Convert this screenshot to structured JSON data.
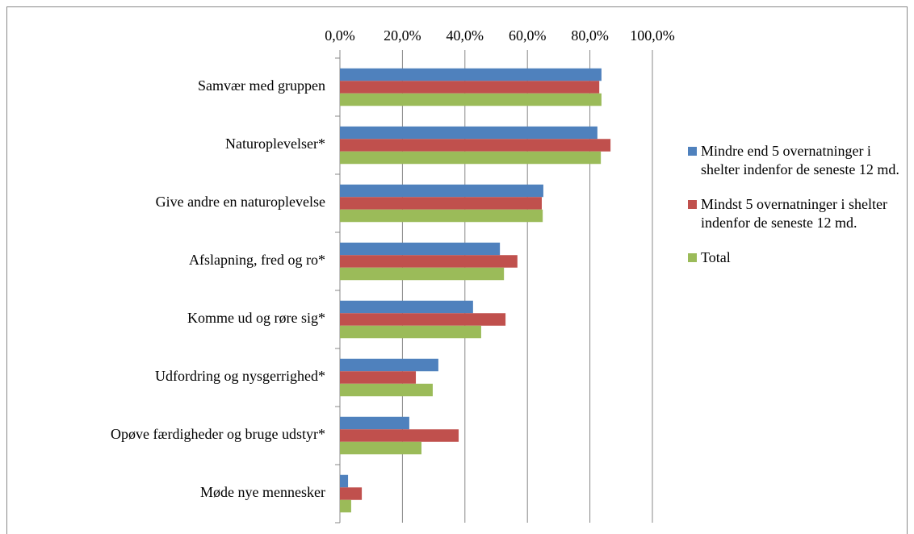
{
  "chart_data": {
    "type": "barh",
    "categories": [
      "Samvær med gruppen",
      "Naturoplevelser*",
      "Give andre en naturoplevelse",
      "Afslapning, fred og ro*",
      "Komme ud og røre sig*",
      "Udfordring og nysgerrighed*",
      "Opøve færdigheder og bruge udstyr*",
      "Møde nye mennesker"
    ],
    "series": [
      {
        "name": "Mindre end 5 overnatninger i shelter indenfor de seneste 12 md.",
        "color": "#4f81bd",
        "values": [
          83.7,
          82.4,
          65.1,
          51.2,
          42.6,
          31.5,
          22.2,
          2.6
        ]
      },
      {
        "name": "Mindst 5 overnatninger i shelter indenfor de seneste 12 md.",
        "color": "#c0504d",
        "values": [
          83.0,
          86.6,
          64.6,
          56.8,
          53.0,
          24.3,
          38.0,
          7.0
        ]
      },
      {
        "name": "Total",
        "color": "#9bbb59",
        "values": [
          83.7,
          83.5,
          64.9,
          52.5,
          45.2,
          29.7,
          26.1,
          3.6
        ]
      }
    ],
    "xlim": [
      0,
      100
    ],
    "xticks": [
      {
        "value": 0,
        "label": "0,0%"
      },
      {
        "value": 20,
        "label": "20,0%"
      },
      {
        "value": 40,
        "label": "40,0%"
      },
      {
        "value": 60,
        "label": "60,0%"
      },
      {
        "value": 80,
        "label": "80,0%"
      },
      {
        "value": 100,
        "label": "100,0%"
      }
    ],
    "grid": true,
    "legend": "right"
  }
}
